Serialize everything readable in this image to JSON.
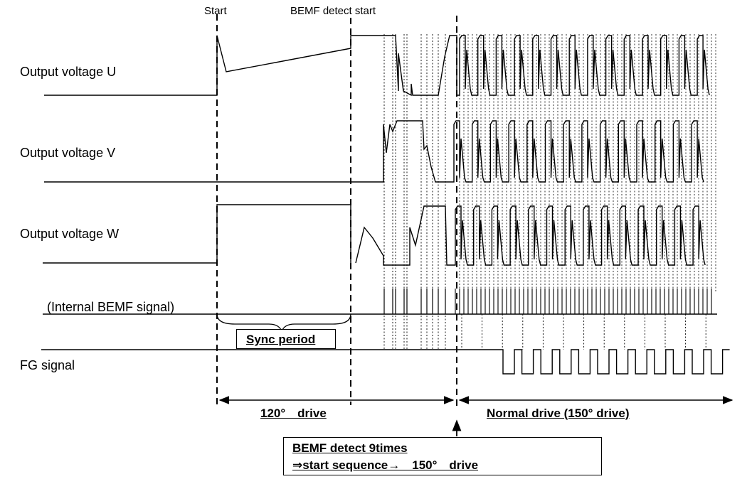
{
  "markers": {
    "start": "Start",
    "bemf_detect_start": "BEMF detect start"
  },
  "signals": {
    "output_u": "Output voltage U",
    "output_v": "Output voltage V",
    "output_w": "Output voltage W",
    "internal_bemf": "(Internal BEMF signal)",
    "fg": "FG signal"
  },
  "sync_period": "Sync period",
  "phases": {
    "drive_120": "120°　drive",
    "normal_drive": "Normal drive (150° drive)"
  },
  "callout": {
    "line1": "BEMF detect 9times",
    "line2": "⇒start sequence→　150°　drive"
  },
  "colors": {
    "ink": "#000000",
    "background": "#ffffff"
  }
}
